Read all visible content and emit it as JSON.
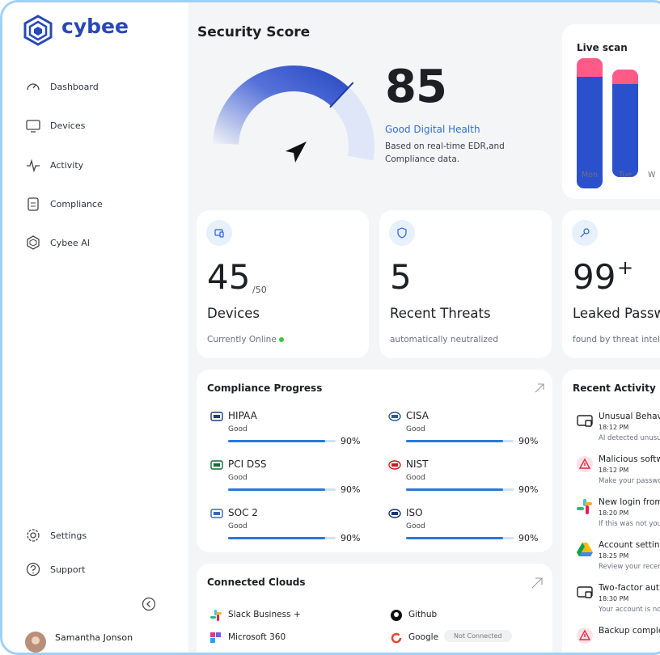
{
  "brand": "cybee",
  "nav": [
    "Dashboard",
    "Devices",
    "Activity",
    "Compliance",
    "Cybee AI"
  ],
  "nav_bottom": [
    "Settings",
    "Support"
  ],
  "user": "Samantha Jonson",
  "security_score": {
    "title": "Security Score",
    "score": 85,
    "status": "Good Digital Health",
    "description": "Based on real-time EDR,and Compliance data."
  },
  "live_scan": {
    "title": "Live scan",
    "days": [
      "Mon",
      "Tue",
      "W"
    ]
  },
  "stats": [
    {
      "value": 45,
      "suffix": "/50",
      "label": "Devices",
      "note": "Currently Online"
    },
    {
      "value": 5,
      "label": "Recent Threats",
      "note": "automatically neutralized"
    },
    {
      "value": 99,
      "suffix": "+",
      "label": "Leaked Passw",
      "note": "found by threat intellig"
    }
  ],
  "compliance": {
    "title": "Compliance Progress",
    "items": [
      {
        "name": "HIPAA",
        "status": "Good",
        "progress": 90,
        "progress_label": "90%"
      },
      {
        "name": "CISA",
        "status": "Good",
        "progress": 90,
        "progress_label": "90%"
      },
      {
        "name": "PCI DSS",
        "status": "Good",
        "progress": 90,
        "progress_label": "90%"
      },
      {
        "name": "NIST",
        "status": "Good",
        "progress": 90,
        "progress_label": "90%"
      },
      {
        "name": "SOC 2",
        "status": "Good",
        "progress": 90,
        "progress_label": "90%"
      },
      {
        "name": "ISO",
        "status": "Good",
        "progress": 90,
        "progress_label": "90%"
      }
    ]
  },
  "clouds": {
    "title": "Connected Clouds",
    "items": [
      {
        "name": "Slack Business +"
      },
      {
        "name": "Github"
      },
      {
        "name": "Microsoft 360"
      },
      {
        "name": "Google",
        "status": "Not Connected"
      }
    ]
  },
  "recent_activity": {
    "title": "Recent Activity",
    "items": [
      {
        "title": "Unusual Behavi",
        "time": "18:12 PM",
        "description": "AI detected unusu"
      },
      {
        "title": "Malicious softw",
        "time": "18:12 PM",
        "description": "Make your passwo"
      },
      {
        "title": "New login from",
        "time": "18:20 PM",
        "description": "If this was not you"
      },
      {
        "title": "Account setting",
        "time": "18:25 PM",
        "description": "Review your recen"
      },
      {
        "title": "Two-factor auth",
        "time": "18:30 PM",
        "description": "Your account is no"
      },
      {
        "title": "Backup comple"
      }
    ]
  }
}
